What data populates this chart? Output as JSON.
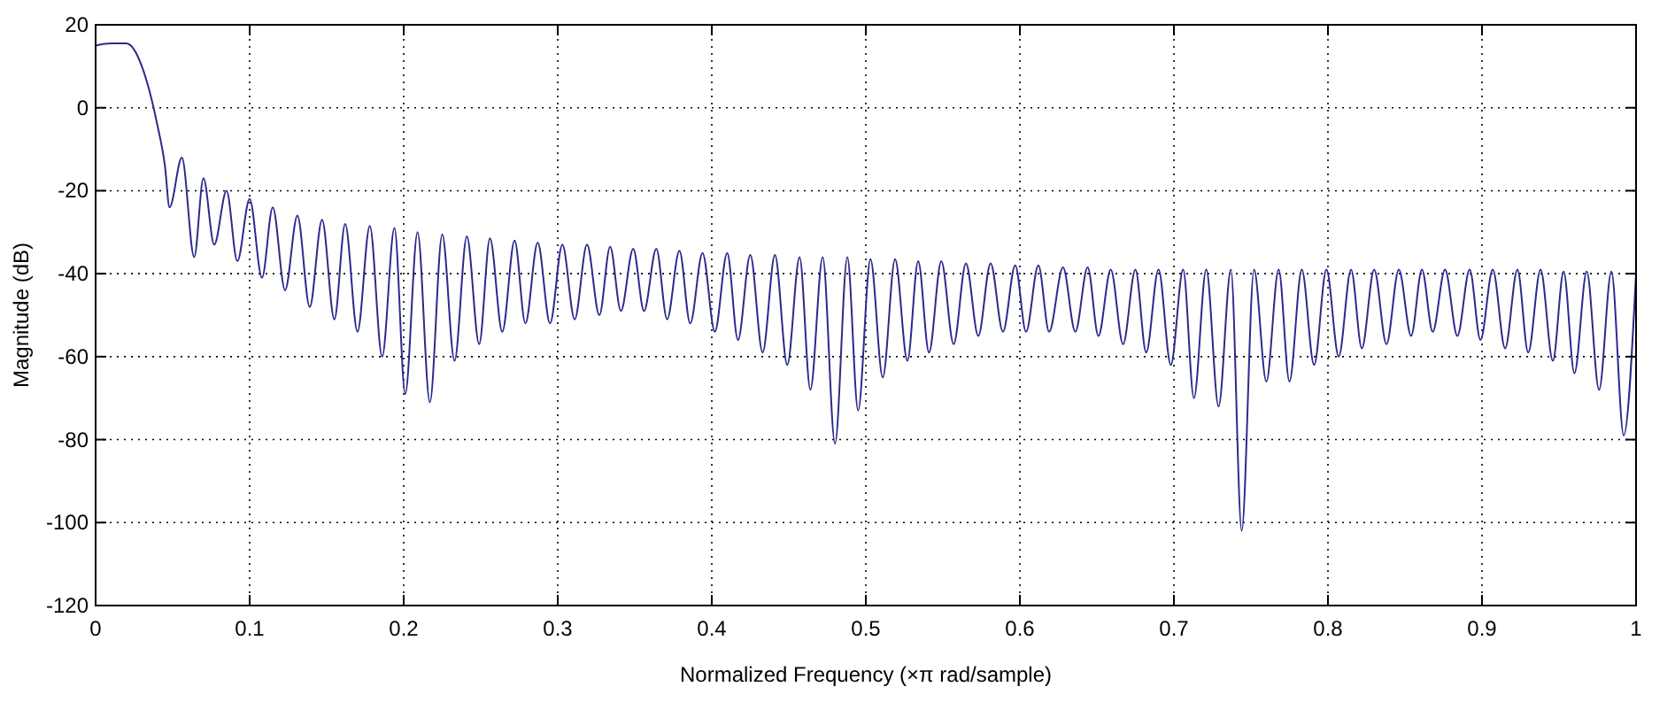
{
  "chart_data": {
    "type": "line",
    "xlabel": "Normalized Frequency  (×π rad/sample)",
    "ylabel": "Magnitude (dB)",
    "xlim": [
      0,
      1
    ],
    "ylim": [
      -120,
      20
    ],
    "xticks": [
      0,
      0.1,
      0.2,
      0.3,
      0.4,
      0.5,
      0.6,
      0.7,
      0.8,
      0.9,
      1
    ],
    "yticks": [
      -120,
      -100,
      -80,
      -60,
      -40,
      -20,
      0,
      20
    ],
    "grid": true,
    "marker": "none",
    "line_style": "solid",
    "series": [
      {
        "color": "#2b2b8c",
        "x": [
          0,
          0.01,
          0.02,
          0.025,
          0.03,
          0.035,
          0.04,
          0.045,
          0.048,
          0.056,
          0.064,
          0.07,
          0.077,
          0.085,
          0.092,
          0.1,
          0.108,
          0.115,
          0.123,
          0.131,
          0.139,
          0.147,
          0.155,
          0.162,
          0.17,
          0.178,
          0.186,
          0.194,
          0.201,
          0.209,
          0.217,
          0.225,
          0.233,
          0.241,
          0.249,
          0.256,
          0.264,
          0.272,
          0.279,
          0.287,
          0.295,
          0.303,
          0.311,
          0.319,
          0.327,
          0.334,
          0.341,
          0.349,
          0.356,
          0.364,
          0.371,
          0.379,
          0.386,
          0.394,
          0.402,
          0.41,
          0.417,
          0.425,
          0.433,
          0.441,
          0.449,
          0.457,
          0.464,
          0.472,
          0.48,
          0.488,
          0.495,
          0.503,
          0.511,
          0.519,
          0.527,
          0.534,
          0.541,
          0.549,
          0.557,
          0.565,
          0.573,
          0.581,
          0.589,
          0.597,
          0.604,
          0.612,
          0.619,
          0.628,
          0.636,
          0.644,
          0.651,
          0.659,
          0.667,
          0.675,
          0.682,
          0.69,
          0.698,
          0.706,
          0.713,
          0.721,
          0.729,
          0.737,
          0.744,
          0.752,
          0.76,
          0.768,
          0.775,
          0.783,
          0.791,
          0.799,
          0.807,
          0.815,
          0.822,
          0.83,
          0.838,
          0.846,
          0.854,
          0.861,
          0.868,
          0.876,
          0.884,
          0.892,
          0.899,
          0.907,
          0.915,
          0.923,
          0.93,
          0.938,
          0.946,
          0.953,
          0.96,
          0.968,
          0.976,
          0.984,
          0.992,
          1
        ],
        "values": [
          15,
          15.5,
          15.5,
          14,
          10,
          4,
          -4,
          -14,
          -24,
          -12,
          -36,
          -17,
          -33,
          -20,
          -37,
          -22,
          -41,
          -24,
          -44,
          -26,
          -48,
          -27,
          -51,
          -28,
          -54,
          -28.5,
          -60,
          -29,
          -69,
          -30,
          -71,
          -30.5,
          -61,
          -31,
          -57,
          -31.5,
          -54,
          -32,
          -52,
          -32.5,
          -52,
          -33,
          -51,
          -33,
          -50,
          -33.5,
          -49,
          -34,
          -49,
          -34,
          -51,
          -34.5,
          -52,
          -35,
          -54,
          -35,
          -56,
          -35.5,
          -59,
          -35.5,
          -62,
          -36,
          -68,
          -36,
          -81,
          -36,
          -73,
          -36.5,
          -65,
          -36.5,
          -61,
          -37,
          -59,
          -37,
          -57,
          -37.5,
          -55,
          -37.5,
          -54,
          -38,
          -54,
          -38,
          -54,
          -38.5,
          -54,
          -38.5,
          -55,
          -39,
          -57,
          -39,
          -59,
          -39,
          -62,
          -39,
          -70,
          -39,
          -72,
          -39,
          -102,
          -39,
          -66,
          -39,
          -66,
          -39,
          -62,
          -39,
          -60,
          -39,
          -58,
          -39,
          -57,
          -39,
          -55,
          -39,
          -54,
          -39,
          -55,
          -39,
          -56,
          -39,
          -58,
          -39,
          -59,
          -39,
          -61,
          -39.5,
          -64,
          -39.5,
          -68,
          -39.5,
          -79,
          -40
        ]
      }
    ]
  }
}
